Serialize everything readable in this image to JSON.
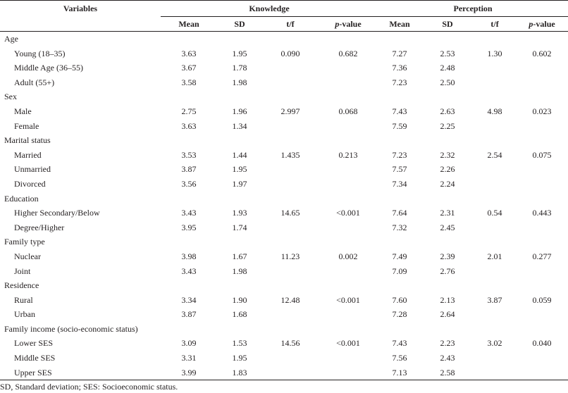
{
  "table": {
    "header": {
      "variables": "Variables",
      "knowledge": "Knowledge",
      "perception": "Perception",
      "columns": {
        "mean": "Mean",
        "sd": "SD",
        "tf": "t/f",
        "p_prefix": "p",
        "p_suffix": "-value"
      }
    },
    "groups": [
      {
        "title": "Age",
        "note": "",
        "rows": [
          {
            "label": "Young (18–35)",
            "k": [
              "3.63",
              "1.95",
              "0.090",
              "0.682"
            ],
            "p": [
              "7.27",
              "2.53",
              "1.30",
              "0.602"
            ]
          },
          {
            "label": "Middle Age (36–55)",
            "k": [
              "3.67",
              "1.78",
              "",
              ""
            ],
            "p": [
              "7.36",
              "2.48",
              "",
              ""
            ]
          },
          {
            "label": "Adult (55+)",
            "k": [
              "3.58",
              "1.98",
              "",
              ""
            ],
            "p": [
              "7.23",
              "2.50",
              "",
              ""
            ]
          }
        ]
      },
      {
        "title": "Sex",
        "note": "",
        "rows": [
          {
            "label": "Male",
            "k": [
              "2.75",
              "1.96",
              "2.997",
              "0.068"
            ],
            "p": [
              "7.43",
              "2.63",
              "4.98",
              "0.023"
            ]
          },
          {
            "label": "Female",
            "k": [
              "3.63",
              "1.34",
              "",
              ""
            ],
            "p": [
              "7.59",
              "2.25",
              "",
              ""
            ]
          }
        ]
      },
      {
        "title": "Marital status",
        "note": "",
        "rows": [
          {
            "label": "Married",
            "k": [
              "3.53",
              "1.44",
              "1.435",
              "0.213"
            ],
            "p": [
              "7.23",
              "2.32",
              "2.54",
              "0.075"
            ]
          },
          {
            "label": "Unmarried",
            "k": [
              "3.87",
              "1.95",
              "",
              ""
            ],
            "p": [
              "7.57",
              "2.26",
              "",
              ""
            ]
          },
          {
            "label": "Divorced",
            "k": [
              "3.56",
              "1.97",
              "",
              ""
            ],
            "p": [
              "7.34",
              "2.24",
              "",
              ""
            ]
          }
        ]
      },
      {
        "title": "Education",
        "note": "",
        "rows": [
          {
            "label": "Higher Secondary/Below",
            "k": [
              "3.43",
              "1.93",
              "14.65",
              "<0.001"
            ],
            "p": [
              "7.64",
              "2.31",
              "0.54",
              "0.443"
            ]
          },
          {
            "label": "Degree/Higher",
            "k": [
              "3.95",
              "1.74",
              "",
              ""
            ],
            "p": [
              "7.32",
              "2.45",
              "",
              ""
            ]
          }
        ]
      },
      {
        "title": "Family type",
        "note": "",
        "rows": [
          {
            "label": "Nuclear",
            "k": [
              "3.98",
              "1.67",
              "11.23",
              "0.002"
            ],
            "p": [
              "7.49",
              "2.39",
              "2.01",
              "0.277"
            ]
          },
          {
            "label": "Joint",
            "k": [
              "3.43",
              "1.98",
              "",
              ""
            ],
            "p": [
              "7.09",
              "2.76",
              "",
              ""
            ]
          }
        ]
      },
      {
        "title": "Residence",
        "note": "",
        "rows": [
          {
            "label": "Rural",
            "k": [
              "3.34",
              "1.90",
              "12.48",
              "<0.001"
            ],
            "p": [
              "7.60",
              "2.13",
              "3.87",
              "0.059"
            ]
          },
          {
            "label": "Urban",
            "k": [
              "3.87",
              "1.68",
              "",
              ""
            ],
            "p": [
              "7.28",
              "2.64",
              "",
              ""
            ]
          }
        ]
      },
      {
        "title": "Family income",
        "note": " (socio-economic status)",
        "rows": [
          {
            "label": "Lower SES",
            "k": [
              "3.09",
              "1.53",
              "14.56",
              "<0.001"
            ],
            "p": [
              "7.43",
              "2.23",
              "3.02",
              "0.040"
            ]
          },
          {
            "label": "Middle SES",
            "k": [
              "3.31",
              "1.95",
              "",
              ""
            ],
            "p": [
              "7.56",
              "2.43",
              "",
              ""
            ]
          },
          {
            "label": "Upper SES",
            "k": [
              "3.99",
              "1.83",
              "",
              ""
            ],
            "p": [
              "7.13",
              "2.58",
              "",
              ""
            ]
          }
        ]
      }
    ]
  },
  "footnote": "SD, Standard deviation; SES: Socioeconomic status."
}
